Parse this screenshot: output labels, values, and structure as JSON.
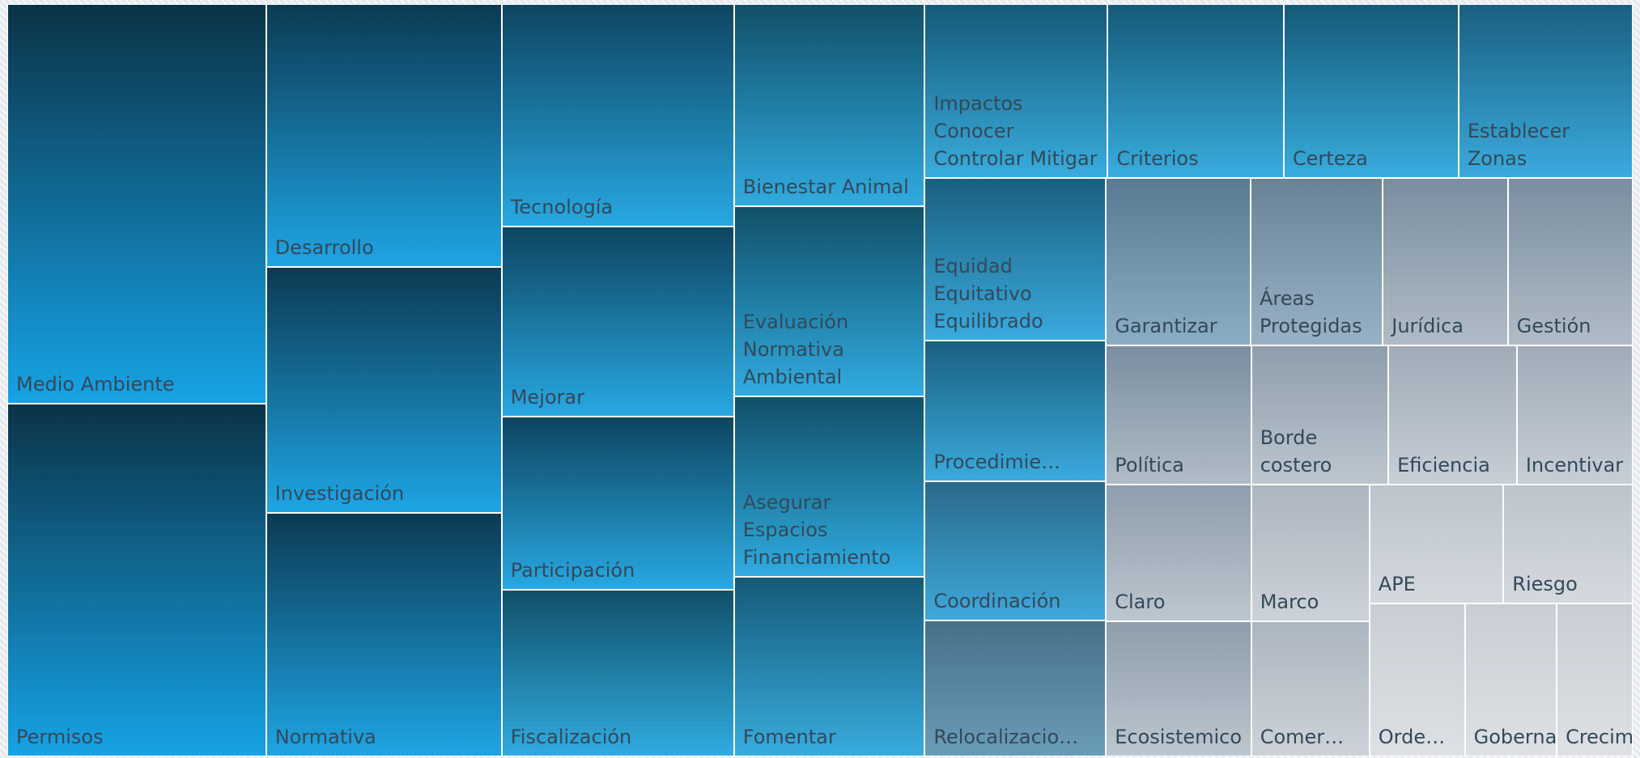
{
  "chart_data": {
    "type": "treemap",
    "categories": [
      "Medio Ambiente",
      "Permisos",
      "Desarrollo",
      "Investigación",
      "Normativa",
      "Tecnología",
      "Mejorar",
      "Participación",
      "Fiscalización",
      "Bienestar Animal",
      "Evaluación Normativa Ambiental",
      "Asegurar Espacios Financiamiento",
      "Fomentar",
      "Impactos Conocer Controlar Mitigar",
      "Criterios",
      "Certeza",
      "Establecer Zonas",
      "Equidad Equitativo Equilibrado",
      "Procedimie…",
      "Coordinación",
      "Relocalizacio…",
      "Garantizar",
      "Áreas Protegidas",
      "Jurídica",
      "Gestión",
      "Política",
      "Claro",
      "Ecosistemico",
      "Borde costero",
      "Eficiencia",
      "Incentivar",
      "Marco",
      "Comer…",
      "APE",
      "Riesgo",
      "Orde…",
      "Gobernanza",
      "Crecimiento"
    ],
    "values": [
      94000,
      83100,
      56400,
      52600,
      52200,
      47000,
      40200,
      36600,
      35200,
      35100,
      32900,
      31400,
      31100,
      29000,
      27900,
      27700,
      27600,
      26800,
      23100,
      23000,
      22400,
      22000,
      20100,
      19000,
      19000,
      18400,
      18000,
      17900,
      17400,
      16300,
      14700,
      14700,
      14500,
      14400,
      13900,
      13300,
      12800,
      10600
    ],
    "colors": [
      "#16a3e6",
      "#16a3e6",
      "#1ea5e4",
      "#1ea5e4",
      "#1ea5e4",
      "#28a8e2",
      "#28a8e2",
      "#28a8e2",
      "#30abe0",
      "#30abe0",
      "#30abe0",
      "#30abe0",
      "#38acde",
      "#38acde",
      "#38acde",
      "#38acde",
      "#3aaade",
      "#3aaade",
      "#3aaade",
      "#3ea8da",
      "#6a9cb8",
      "#8aaec4",
      "#98b2c4",
      "#b0bcc6",
      "#b0bcc6",
      "#b0bcc6",
      "#bcc6ce",
      "#bcc6ce",
      "#bcc6ce",
      "#c6ced6",
      "#c6ced6",
      "#ccd2d8",
      "#ccd2d8",
      "#d4d9de",
      "#d4d9de",
      "#dde1e5",
      "#dde1e5",
      "#dde1e5"
    ],
    "top_colors": [
      "#0b3347",
      "#0b3347",
      "#0c3a52",
      "#0c3a52",
      "#0c3a52",
      "#0e4560",
      "#0e4560",
      "#0e4560",
      "#115068",
      "#115068",
      "#115068",
      "#115068",
      "#155a78",
      "#155a78",
      "#155a78",
      "#155a78",
      "#1a6080",
      "#1a6080",
      "#1a6080",
      "#2a6a8a",
      "#46708a",
      "#587a92",
      "#6a8296",
      "#7a8ea0",
      "#7a8ea0",
      "#7a8ea0",
      "#8e9eac",
      "#8e9eac",
      "#8e9eac",
      "#a0acb8",
      "#a0acb8",
      "#acb6c0",
      "#acb6c0",
      "#bcc4cc",
      "#bcc4cc",
      "#c8ced4",
      "#c8ced4",
      "#c8ced4"
    ]
  }
}
